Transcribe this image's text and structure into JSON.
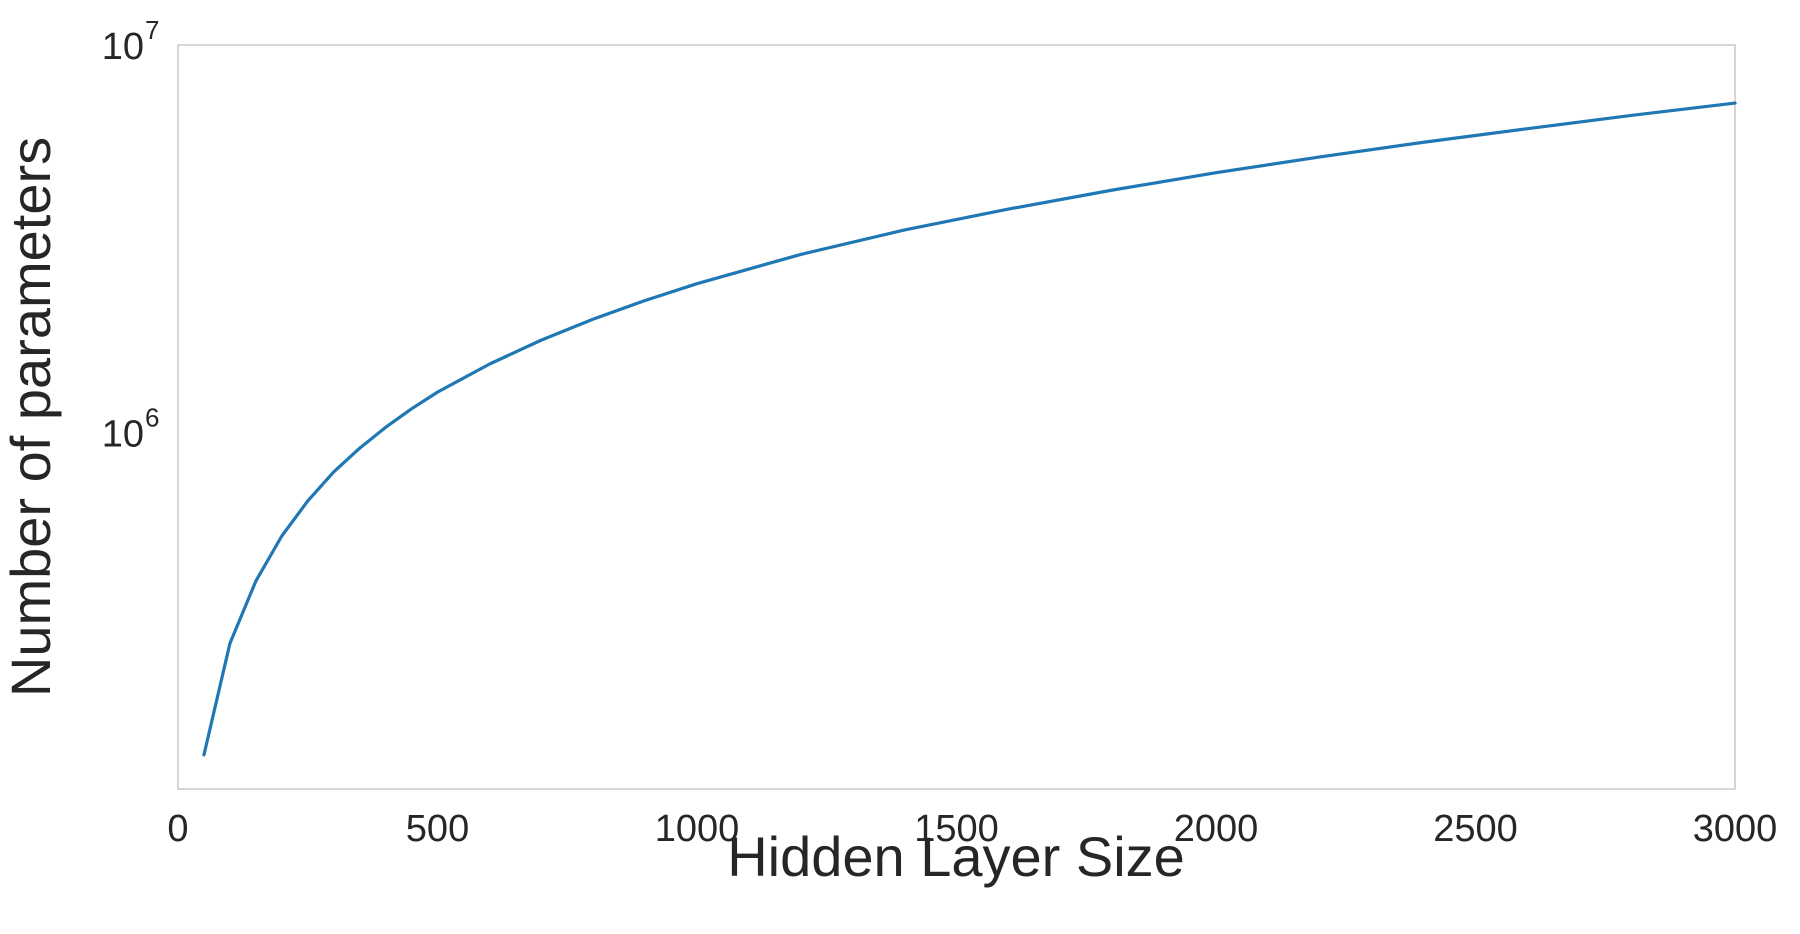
{
  "chart_data": {
    "type": "line",
    "title": "",
    "xlabel": "Hidden Layer Size",
    "ylabel": "Number of parameters",
    "xlim": [
      0,
      3000
    ],
    "ylim": [
      120000,
      10000000
    ],
    "yscale": "log",
    "grid": false,
    "legend": "none",
    "x_ticks": [
      {
        "value": 0,
        "label": "0"
      },
      {
        "value": 500,
        "label": "500"
      },
      {
        "value": 1000,
        "label": "1000"
      },
      {
        "value": 1500,
        "label": "1500"
      },
      {
        "value": 2000,
        "label": "2000"
      },
      {
        "value": 2500,
        "label": "2500"
      },
      {
        "value": 3000,
        "label": "3000"
      }
    ],
    "y_ticks": [
      {
        "value": 1000000,
        "base": "10",
        "exp": "6"
      },
      {
        "value": 10000000,
        "base": "10",
        "exp": "7"
      }
    ],
    "series": [
      {
        "color": "#1f77b4",
        "x": [
          50,
          100,
          150,
          200,
          250,
          300,
          350,
          400,
          450,
          500,
          600,
          700,
          800,
          900,
          1000,
          1200,
          1400,
          1600,
          1800,
          2000,
          2200,
          2400,
          2600,
          2800,
          3000
        ],
        "y": [
          147000,
          285000,
          413000,
          540000,
          665000,
          790000,
          910000,
          1030000,
          1150000,
          1270000,
          1500000,
          1730000,
          1960000,
          2190000,
          2420000,
          2880000,
          3330000,
          3770000,
          4220000,
          4680000,
          5140000,
          5610000,
          6080000,
          6580000,
          7080000
        ]
      }
    ]
  }
}
